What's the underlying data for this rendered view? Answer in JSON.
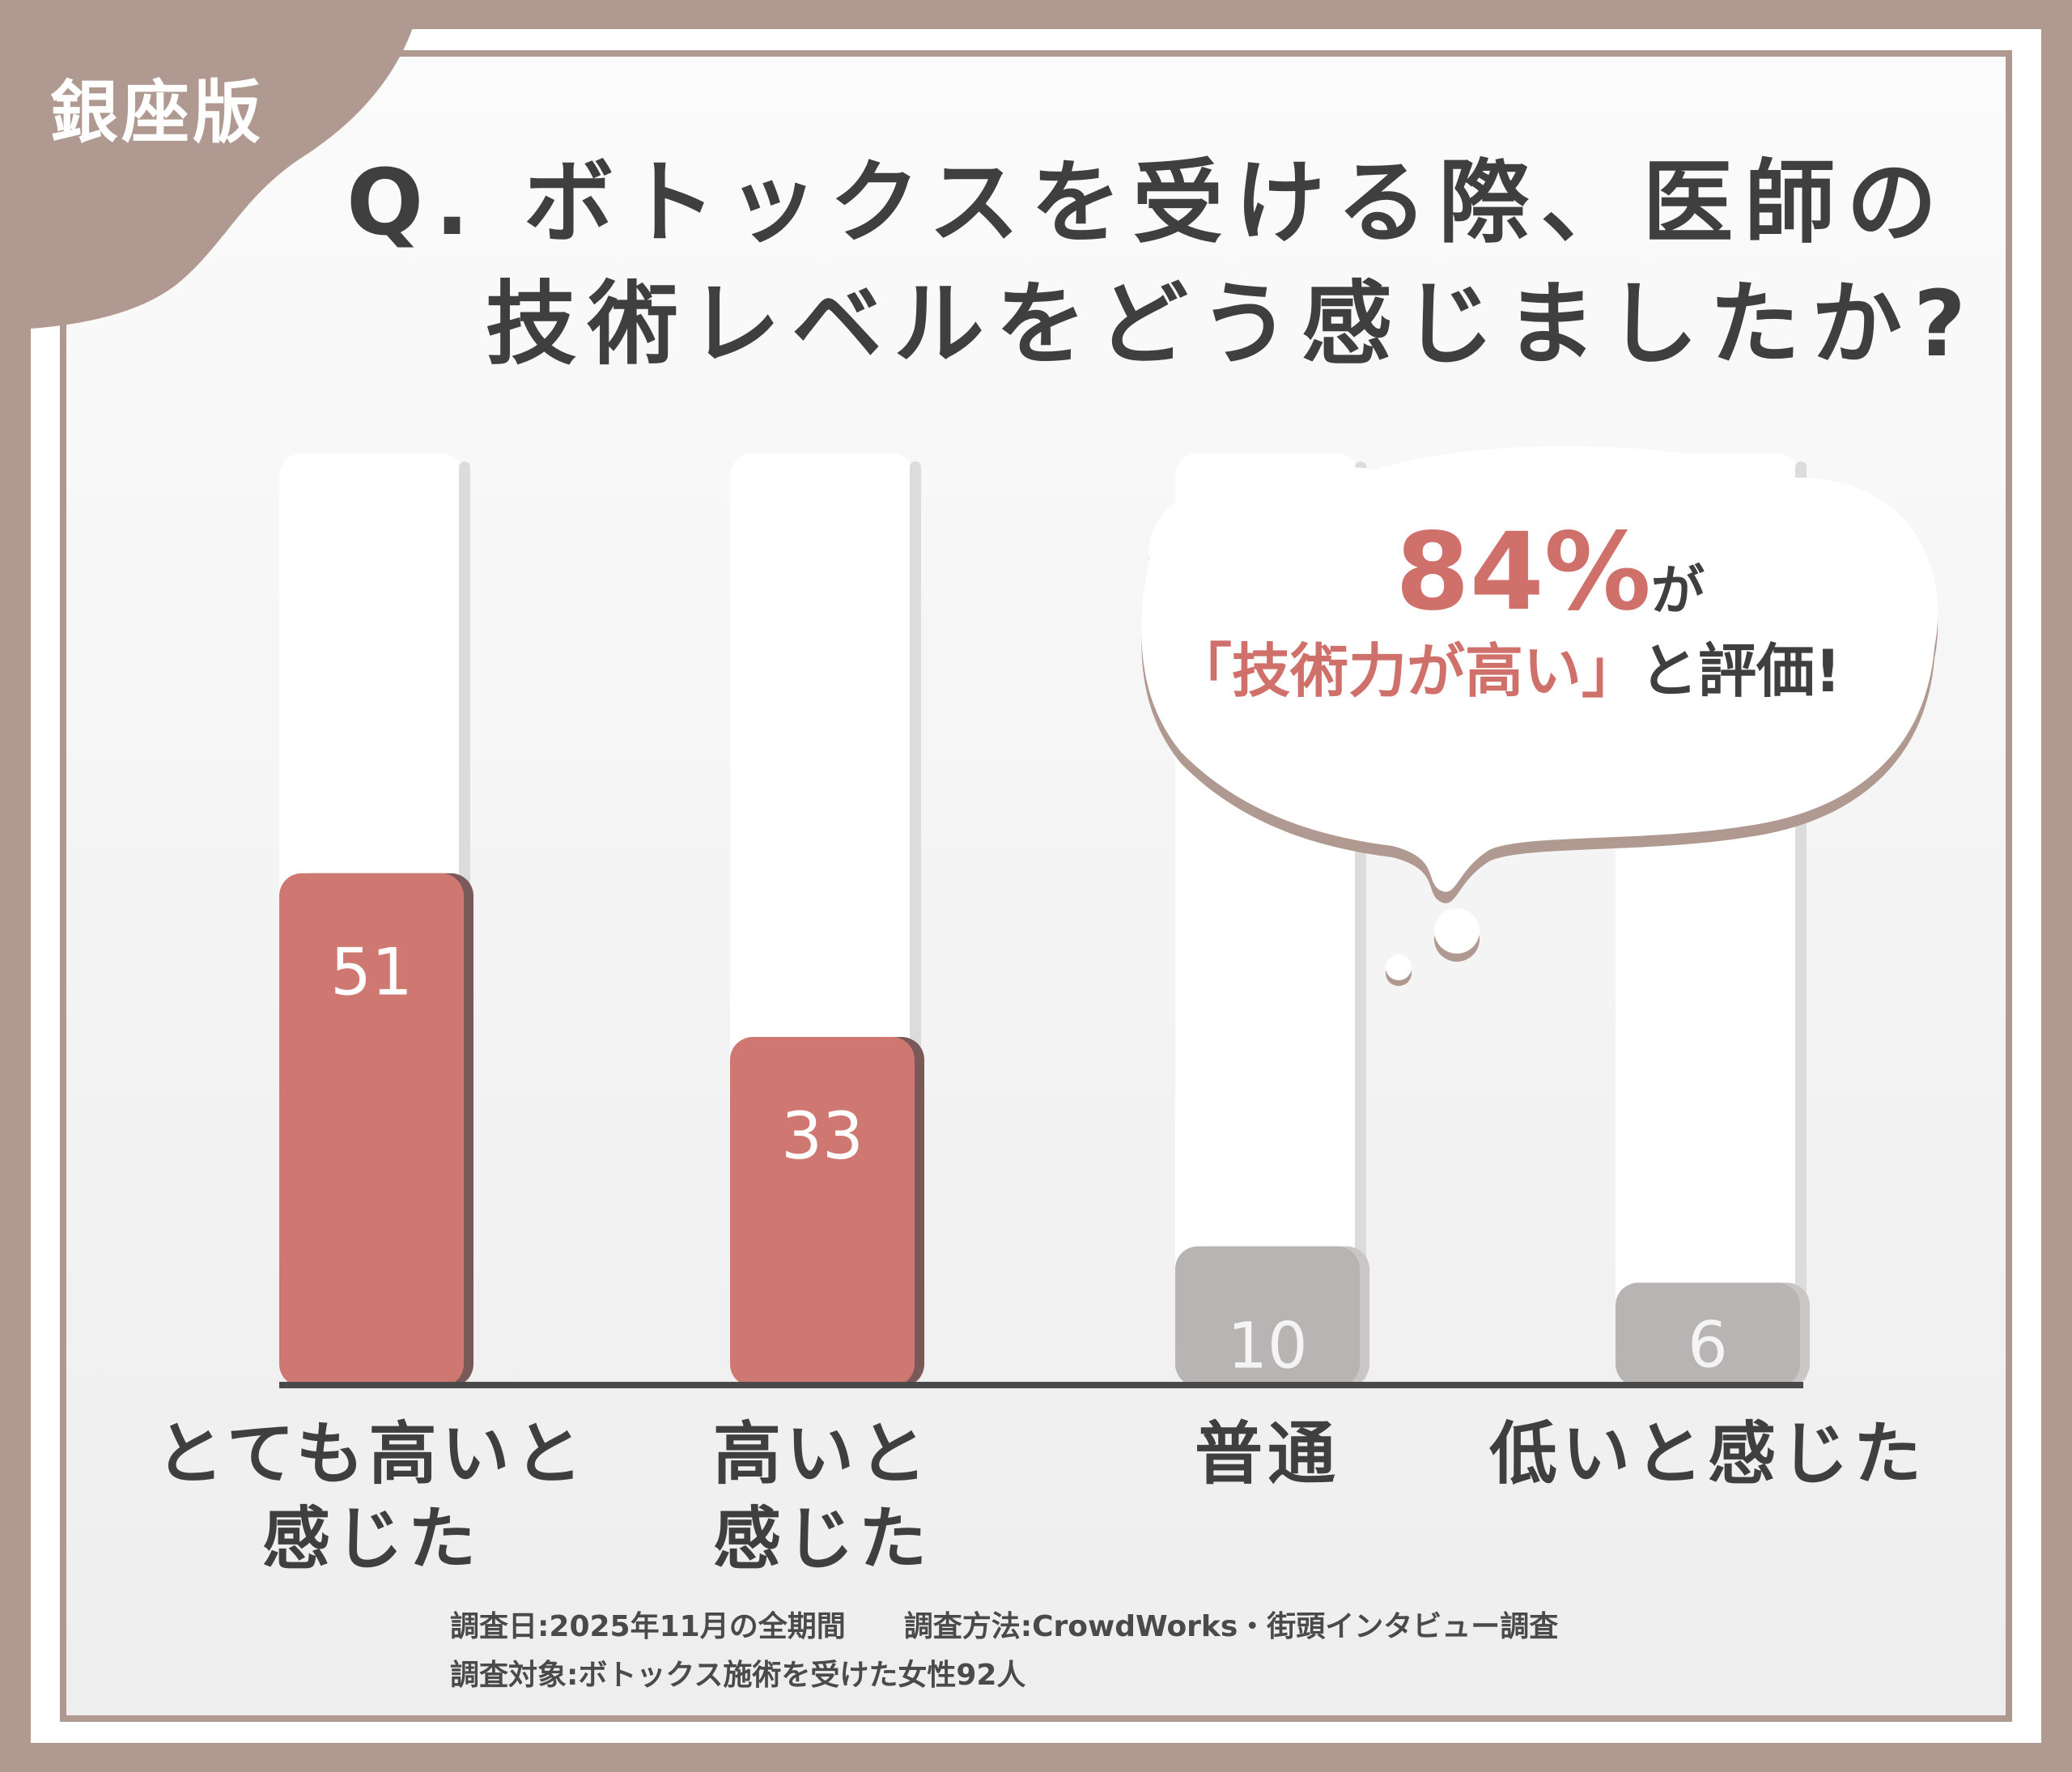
{
  "badge": "銀座版",
  "title": {
    "line1": "Q. ボトックスを受ける際、医師の",
    "line2": "技術レベルをどう感じましたか?"
  },
  "callout": {
    "percent": "84%",
    "particle": "が",
    "quote_open": "「",
    "quote_text": "技術力が高い",
    "quote_close": "」",
    "tail": "と評価!"
  },
  "notes": {
    "line1": "調査日:2025年11月の全期間　　調査方法:CrowdWorks・街頭インタビュー調査",
    "line2": "調査対象:ボトックス施術を受けた女性92人"
  },
  "colors": {
    "frame": "#b09990",
    "highlight": "#cf7771",
    "neutral": "#b7b4b3",
    "text": "#3f3f3f"
  },
  "chart_data": {
    "type": "bar",
    "categories": [
      "とても高いと\n感じた",
      "高いと\n感じた",
      "普通",
      "低いと感じた"
    ],
    "values": [
      51,
      33,
      10,
      6
    ],
    "highlight": [
      true,
      true,
      false,
      false
    ],
    "title": "",
    "xlabel": "",
    "ylabel": "",
    "ylim": [
      0,
      100
    ],
    "grid": false,
    "legend": "none"
  }
}
